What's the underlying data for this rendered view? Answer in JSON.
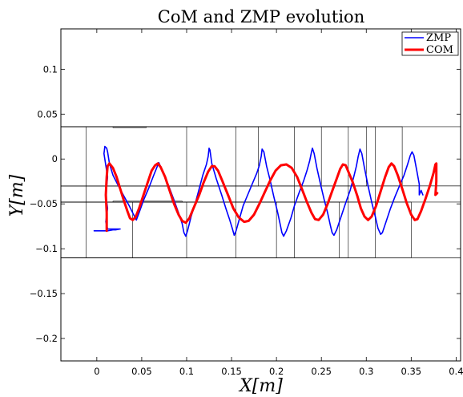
{
  "chart_data": {
    "type": "line",
    "title": "CoM and ZMP evolution",
    "xlabel": "X[m]",
    "ylabel": "Y[m]",
    "xlim": [
      -0.04,
      0.405
    ],
    "ylim": [
      -0.225,
      0.145
    ],
    "xticks": [
      0,
      0.05,
      0.1,
      0.15,
      0.2,
      0.25,
      0.3,
      0.35,
      0.4
    ],
    "yticks": [
      0.1,
      0.05,
      0,
      -0.05,
      -0.1,
      -0.15,
      -0.2
    ],
    "xtick_labels": [
      "0",
      "0.05",
      "0.1",
      "0.15",
      "0.2",
      "0.25",
      "0.3",
      "0.35",
      "0.4"
    ],
    "ytick_labels": [
      "0.1",
      "0.05",
      "0",
      "−0.05",
      "−0.1",
      "−0.15",
      "−0.2"
    ],
    "grid": false,
    "legend_position": "top-right",
    "footsteps": [
      [
        -0.04,
        -0.03,
        0.1,
        0.036
      ],
      [
        -0.04,
        -0.03,
        0.18,
        0.036
      ],
      [
        -0.04,
        -0.03,
        0.25,
        0.036
      ],
      [
        -0.04,
        -0.03,
        0.3,
        0.036
      ],
      [
        -0.04,
        -0.03,
        0.34,
        0.036
      ],
      [
        -0.04,
        -0.03,
        0.405,
        0.036
      ],
      [
        -0.04,
        -0.11,
        0.04,
        -0.048
      ],
      [
        -0.04,
        -0.11,
        0.1,
        -0.048
      ],
      [
        -0.04,
        -0.11,
        0.2,
        -0.048
      ],
      [
        -0.04,
        -0.11,
        0.27,
        -0.048
      ],
      [
        -0.04,
        -0.11,
        0.35,
        -0.048
      ],
      [
        -0.04,
        -0.11,
        0.405,
        -0.048
      ],
      [
        -0.04,
        -0.11,
        -0.012,
        0.036
      ],
      [
        -0.04,
        -0.11,
        0.155,
        0.036
      ],
      [
        -0.04,
        -0.11,
        0.22,
        0.036
      ],
      [
        -0.04,
        -0.11,
        0.28,
        0.036
      ],
      [
        -0.04,
        -0.11,
        0.31,
        0.036
      ],
      [
        -0.04,
        -0.11,
        0.405,
        -0.03
      ],
      [
        0.018,
        0.035,
        0.055,
        0.036
      ],
      [
        0.018,
        -0.048,
        0.095,
        -0.047
      ]
    ],
    "series": [
      {
        "name": "ZMP",
        "color": "#0000ff",
        "width": 1.6,
        "points": [
          [
            -0.003,
            -0.08
          ],
          [
            0.006,
            -0.08
          ],
          [
            0.012,
            -0.08
          ],
          [
            0.018,
            -0.079
          ],
          [
            0.021,
            -0.079
          ],
          [
            0.026,
            -0.078
          ],
          [
            0.012,
            -0.078
          ],
          [
            0.01,
            -0.07
          ],
          [
            0.012,
            -0.055
          ],
          [
            0.01,
            -0.04
          ],
          [
            0.012,
            -0.02
          ],
          [
            0.008,
            0.006
          ],
          [
            0.009,
            0.014
          ],
          [
            0.011,
            0.012
          ],
          [
            0.012,
            0.008
          ],
          [
            0.014,
            -0.005
          ],
          [
            0.018,
            -0.018
          ],
          [
            0.024,
            -0.03
          ],
          [
            0.03,
            -0.041
          ],
          [
            0.036,
            -0.052
          ],
          [
            0.041,
            -0.062
          ],
          [
            0.044,
            -0.068
          ],
          [
            0.047,
            -0.06
          ],
          [
            0.052,
            -0.046
          ],
          [
            0.058,
            -0.032
          ],
          [
            0.063,
            -0.019
          ],
          [
            0.067,
            -0.009
          ],
          [
            0.069,
            -0.004
          ],
          [
            0.074,
            -0.015
          ],
          [
            0.08,
            -0.03
          ],
          [
            0.086,
            -0.046
          ],
          [
            0.091,
            -0.06
          ],
          [
            0.095,
            -0.072
          ],
          [
            0.097,
            -0.082
          ],
          [
            0.099,
            -0.086
          ],
          [
            0.101,
            -0.08
          ],
          [
            0.105,
            -0.064
          ],
          [
            0.11,
            -0.048
          ],
          [
            0.114,
            -0.033
          ],
          [
            0.118,
            -0.018
          ],
          [
            0.122,
            -0.006
          ],
          [
            0.124,
            0.003
          ],
          [
            0.125,
            0.012
          ],
          [
            0.126,
            0.01
          ],
          [
            0.128,
            -0.005
          ],
          [
            0.133,
            -0.022
          ],
          [
            0.139,
            -0.04
          ],
          [
            0.144,
            -0.056
          ],
          [
            0.148,
            -0.068
          ],
          [
            0.151,
            -0.078
          ],
          [
            0.153,
            -0.085
          ],
          [
            0.155,
            -0.08
          ],
          [
            0.159,
            -0.066
          ],
          [
            0.163,
            -0.052
          ],
          [
            0.168,
            -0.04
          ],
          [
            0.173,
            -0.028
          ],
          [
            0.178,
            -0.016
          ],
          [
            0.181,
            -0.007
          ],
          [
            0.183,
            0.003
          ],
          [
            0.184,
            0.011
          ],
          [
            0.186,
            0.008
          ],
          [
            0.189,
            -0.008
          ],
          [
            0.193,
            -0.024
          ],
          [
            0.197,
            -0.042
          ],
          [
            0.201,
            -0.058
          ],
          [
            0.204,
            -0.072
          ],
          [
            0.206,
            -0.082
          ],
          [
            0.208,
            -0.086
          ],
          [
            0.211,
            -0.08
          ],
          [
            0.216,
            -0.066
          ],
          [
            0.22,
            -0.052
          ],
          [
            0.225,
            -0.038
          ],
          [
            0.23,
            -0.025
          ],
          [
            0.234,
            -0.013
          ],
          [
            0.237,
            -0.002
          ],
          [
            0.239,
            0.008
          ],
          [
            0.24,
            0.012
          ],
          [
            0.242,
            0.006
          ],
          [
            0.245,
            -0.01
          ],
          [
            0.249,
            -0.028
          ],
          [
            0.253,
            -0.045
          ],
          [
            0.257,
            -0.06
          ],
          [
            0.26,
            -0.074
          ],
          [
            0.262,
            -0.082
          ],
          [
            0.264,
            -0.085
          ],
          [
            0.267,
            -0.079
          ],
          [
            0.272,
            -0.064
          ],
          [
            0.277,
            -0.049
          ],
          [
            0.282,
            -0.035
          ],
          [
            0.286,
            -0.02
          ],
          [
            0.289,
            -0.008
          ],
          [
            0.291,
            0.003
          ],
          [
            0.293,
            0.011
          ],
          [
            0.295,
            0.006
          ],
          [
            0.298,
            -0.01
          ],
          [
            0.302,
            -0.03
          ],
          [
            0.306,
            -0.048
          ],
          [
            0.31,
            -0.064
          ],
          [
            0.313,
            -0.077
          ],
          [
            0.316,
            -0.084
          ],
          [
            0.318,
            -0.082
          ],
          [
            0.322,
            -0.07
          ],
          [
            0.327,
            -0.055
          ],
          [
            0.332,
            -0.042
          ],
          [
            0.337,
            -0.03
          ],
          [
            0.342,
            -0.018
          ],
          [
            0.346,
            -0.006
          ],
          [
            0.349,
            0.004
          ],
          [
            0.351,
            0.008
          ],
          [
            0.353,
            0.004
          ],
          [
            0.356,
            -0.012
          ],
          [
            0.359,
            -0.028
          ],
          [
            0.359,
            -0.04
          ],
          [
            0.361,
            -0.035
          ],
          [
            0.363,
            -0.04
          ]
        ]
      },
      {
        "name": "COM",
        "color": "#ff0000",
        "width": 3,
        "points": [
          [
            0.011,
            -0.08
          ],
          [
            0.011,
            -0.06
          ],
          [
            0.01,
            -0.04
          ],
          [
            0.011,
            -0.02
          ],
          [
            0.012,
            -0.008
          ],
          [
            0.014,
            -0.005
          ],
          [
            0.018,
            -0.01
          ],
          [
            0.022,
            -0.02
          ],
          [
            0.026,
            -0.033
          ],
          [
            0.03,
            -0.046
          ],
          [
            0.034,
            -0.058
          ],
          [
            0.037,
            -0.066
          ],
          [
            0.04,
            -0.068
          ],
          [
            0.043,
            -0.065
          ],
          [
            0.047,
            -0.055
          ],
          [
            0.052,
            -0.04
          ],
          [
            0.057,
            -0.025
          ],
          [
            0.061,
            -0.013
          ],
          [
            0.065,
            -0.007
          ],
          [
            0.068,
            -0.005
          ],
          [
            0.071,
            -0.009
          ],
          [
            0.076,
            -0.02
          ],
          [
            0.081,
            -0.035
          ],
          [
            0.086,
            -0.05
          ],
          [
            0.091,
            -0.062
          ],
          [
            0.095,
            -0.069
          ],
          [
            0.099,
            -0.071
          ],
          [
            0.103,
            -0.066
          ],
          [
            0.108,
            -0.054
          ],
          [
            0.114,
            -0.04
          ],
          [
            0.119,
            -0.026
          ],
          [
            0.124,
            -0.014
          ],
          [
            0.128,
            -0.008
          ],
          [
            0.131,
            -0.008
          ],
          [
            0.135,
            -0.013
          ],
          [
            0.14,
            -0.025
          ],
          [
            0.146,
            -0.04
          ],
          [
            0.152,
            -0.055
          ],
          [
            0.158,
            -0.065
          ],
          [
            0.164,
            -0.07
          ],
          [
            0.169,
            -0.069
          ],
          [
            0.175,
            -0.062
          ],
          [
            0.181,
            -0.05
          ],
          [
            0.187,
            -0.037
          ],
          [
            0.193,
            -0.024
          ],
          [
            0.199,
            -0.013
          ],
          [
            0.205,
            -0.007
          ],
          [
            0.211,
            -0.006
          ],
          [
            0.217,
            -0.01
          ],
          [
            0.223,
            -0.02
          ],
          [
            0.229,
            -0.035
          ],
          [
            0.234,
            -0.048
          ],
          [
            0.239,
            -0.06
          ],
          [
            0.243,
            -0.067
          ],
          [
            0.247,
            -0.068
          ],
          [
            0.252,
            -0.062
          ],
          [
            0.257,
            -0.05
          ],
          [
            0.262,
            -0.036
          ],
          [
            0.267,
            -0.022
          ],
          [
            0.271,
            -0.011
          ],
          [
            0.274,
            -0.006
          ],
          [
            0.277,
            -0.007
          ],
          [
            0.28,
            -0.014
          ],
          [
            0.285,
            -0.026
          ],
          [
            0.29,
            -0.041
          ],
          [
            0.294,
            -0.055
          ],
          [
            0.298,
            -0.064
          ],
          [
            0.302,
            -0.068
          ],
          [
            0.306,
            -0.064
          ],
          [
            0.311,
            -0.052
          ],
          [
            0.316,
            -0.036
          ],
          [
            0.321,
            -0.02
          ],
          [
            0.325,
            -0.009
          ],
          [
            0.328,
            -0.005
          ],
          [
            0.331,
            -0.008
          ],
          [
            0.335,
            -0.018
          ],
          [
            0.34,
            -0.033
          ],
          [
            0.345,
            -0.049
          ],
          [
            0.35,
            -0.062
          ],
          [
            0.354,
            -0.068
          ],
          [
            0.357,
            -0.067
          ],
          [
            0.361,
            -0.058
          ],
          [
            0.366,
            -0.044
          ],
          [
            0.371,
            -0.029
          ],
          [
            0.375,
            -0.015
          ],
          [
            0.377,
            -0.006
          ],
          [
            0.378,
            -0.005
          ],
          [
            0.378,
            -0.025
          ],
          [
            0.377,
            -0.04
          ],
          [
            0.379,
            -0.038
          ]
        ]
      }
    ]
  }
}
